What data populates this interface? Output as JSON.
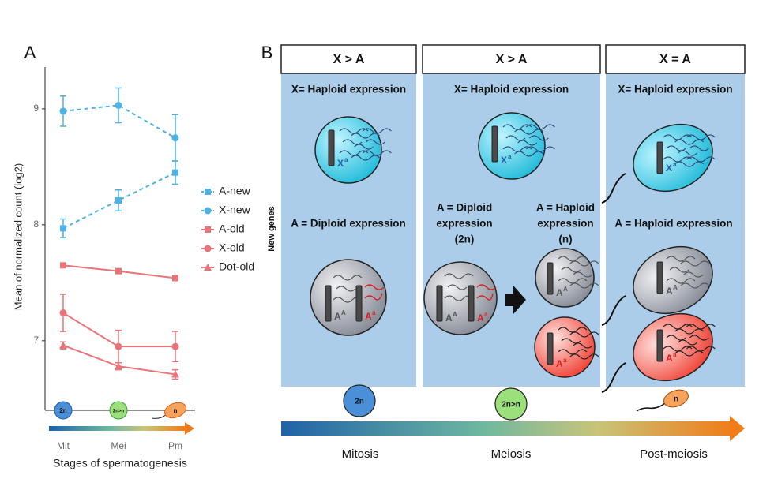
{
  "chart_data": {
    "type": "line",
    "panel_label": "A",
    "ylabel": "Mean of normalized count (log2)",
    "xlabel": "Stages of spermatogenesis",
    "categories": [
      "Mit",
      "Mei",
      "Pm"
    ],
    "stage_icons": [
      "2n",
      "2n>n",
      "n"
    ],
    "ylim": [
      6.4,
      9.36
    ],
    "yticks": [
      7,
      8,
      9
    ],
    "series": [
      {
        "name": "A-new",
        "color": "#4eb3e3",
        "marker": "square",
        "linestyle": "dashed",
        "values": [
          7.97,
          8.21,
          8.45
        ],
        "errors": [
          0.08,
          0.09,
          0.1
        ]
      },
      {
        "name": "X-new",
        "color": "#4eb3e3",
        "marker": "circle",
        "linestyle": "dashed",
        "values": [
          8.98,
          9.03,
          8.75
        ],
        "errors": [
          0.13,
          0.15,
          0.2
        ]
      },
      {
        "name": "A-old",
        "color": "#e9757b",
        "marker": "square",
        "linestyle": "solid",
        "values": [
          7.65,
          7.6,
          7.54
        ],
        "errors": [
          0.02,
          0.02,
          0.02
        ]
      },
      {
        "name": "X-old",
        "color": "#e9757b",
        "marker": "circle",
        "linestyle": "solid",
        "values": [
          7.24,
          6.95,
          6.95
        ],
        "errors": [
          0.16,
          0.14,
          0.13
        ]
      },
      {
        "name": "Dot-old",
        "color": "#e9757b",
        "marker": "triangle",
        "linestyle": "solid",
        "values": [
          6.96,
          6.78,
          6.71
        ],
        "errors": [
          0.03,
          0.03,
          0.04
        ]
      }
    ]
  },
  "diagram": {
    "panel_label": "B",
    "side_label": "New genes",
    "columns": [
      {
        "header": "X > A",
        "x_text": [
          "X= Haploid expression"
        ],
        "a_texts": [
          [
            "A = Diploid expression"
          ]
        ]
      },
      {
        "header": "X > A",
        "x_text": [
          "X= Haploid  expression"
        ],
        "a_texts": [
          [
            "A = Diploid",
            "expression",
            "(2n)"
          ],
          [
            "A = Haploid",
            "expression",
            "(n)"
          ]
        ]
      },
      {
        "header": "X = A",
        "x_text": [
          "X= Haploid  expression"
        ],
        "a_texts": [
          [
            "A =  Haploid  expression"
          ]
        ]
      }
    ],
    "chromosome_labels": [
      {
        "base": "X",
        "sup": "a"
      },
      {
        "base": "A",
        "sup": "A"
      },
      {
        "base": "A",
        "sup": "a"
      },
      {
        "base": "X",
        "sup": "a"
      },
      {
        "base": "A",
        "sup": "A"
      },
      {
        "base": "A",
        "sup": "a"
      },
      {
        "base": "A",
        "sup": "A"
      },
      {
        "base": "A",
        "sup": "a"
      },
      {
        "base": "X",
        "sup": "a"
      },
      {
        "base": "A",
        "sup": "A"
      },
      {
        "base": "A",
        "sup": "a"
      }
    ],
    "stage_icons": [
      "2n",
      "2n>n",
      "n"
    ],
    "stages": [
      "Mitosis",
      "Meiosis",
      "Post-meiosis"
    ]
  }
}
